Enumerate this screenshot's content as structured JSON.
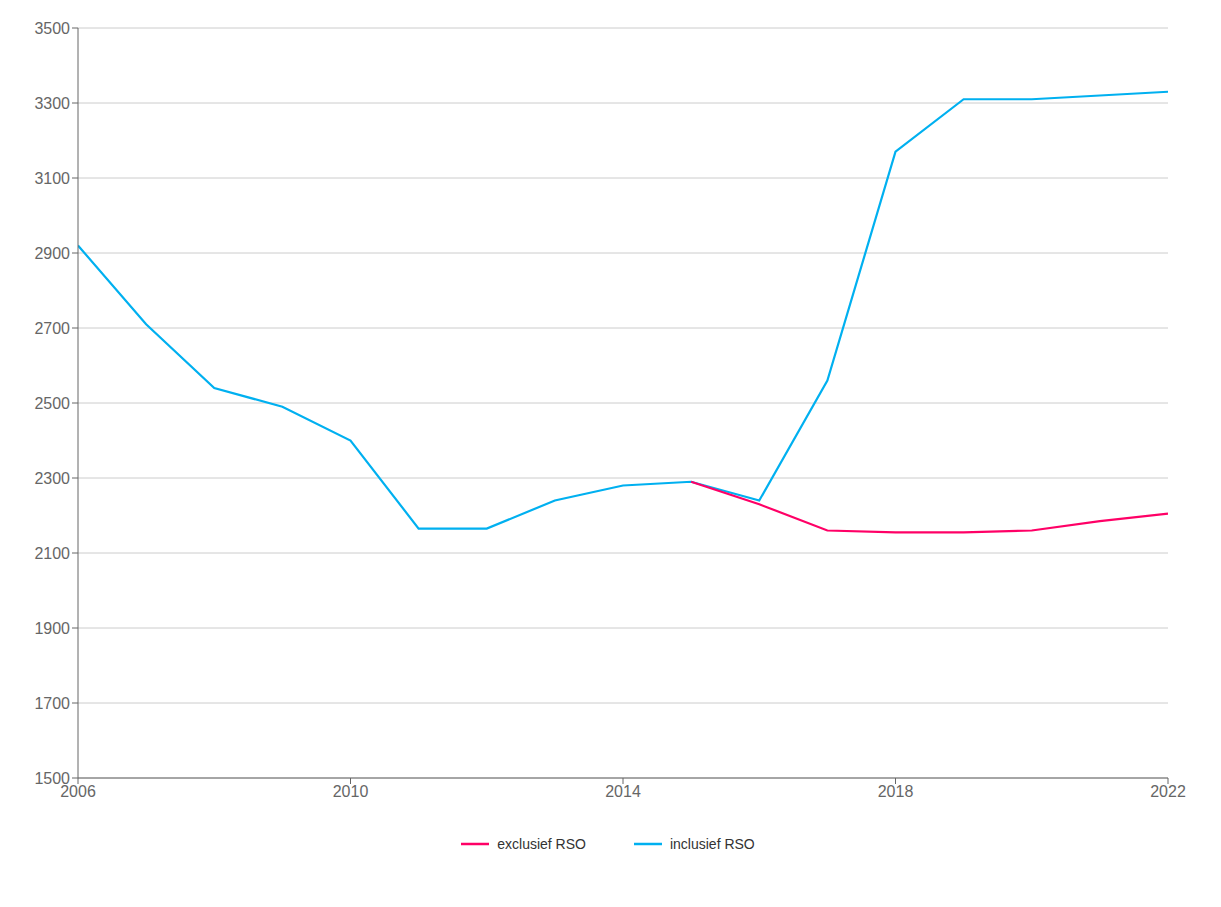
{
  "chart_data": {
    "type": "line",
    "x": [
      2006,
      2007,
      2008,
      2009,
      2010,
      2011,
      2012,
      2013,
      2014,
      2015,
      2016,
      2017,
      2018,
      2019,
      2020,
      2021,
      2022
    ],
    "series": [
      {
        "name": "inclusief RSO",
        "color": "#00B0F0",
        "values": [
          2920,
          2710,
          2540,
          2490,
          2400,
          2165,
          2165,
          2240,
          2280,
          2290,
          2240,
          2560,
          3170,
          3310,
          3310,
          3320,
          3330
        ]
      },
      {
        "name": "exclusief RSO",
        "color": "#FF0066",
        "values": [
          null,
          null,
          null,
          null,
          null,
          null,
          null,
          null,
          null,
          2290,
          2230,
          2160,
          2155,
          2155,
          2160,
          2185,
          2205
        ]
      }
    ],
    "xlim": [
      2006,
      2022
    ],
    "xticks": [
      2006,
      2010,
      2014,
      2018,
      2022
    ],
    "ylim": [
      1500,
      3500
    ],
    "yticks": [
      1500,
      1700,
      1900,
      2100,
      2300,
      2500,
      2700,
      2900,
      3100,
      3300,
      3500
    ],
    "grid": true,
    "legend": "bottom"
  }
}
